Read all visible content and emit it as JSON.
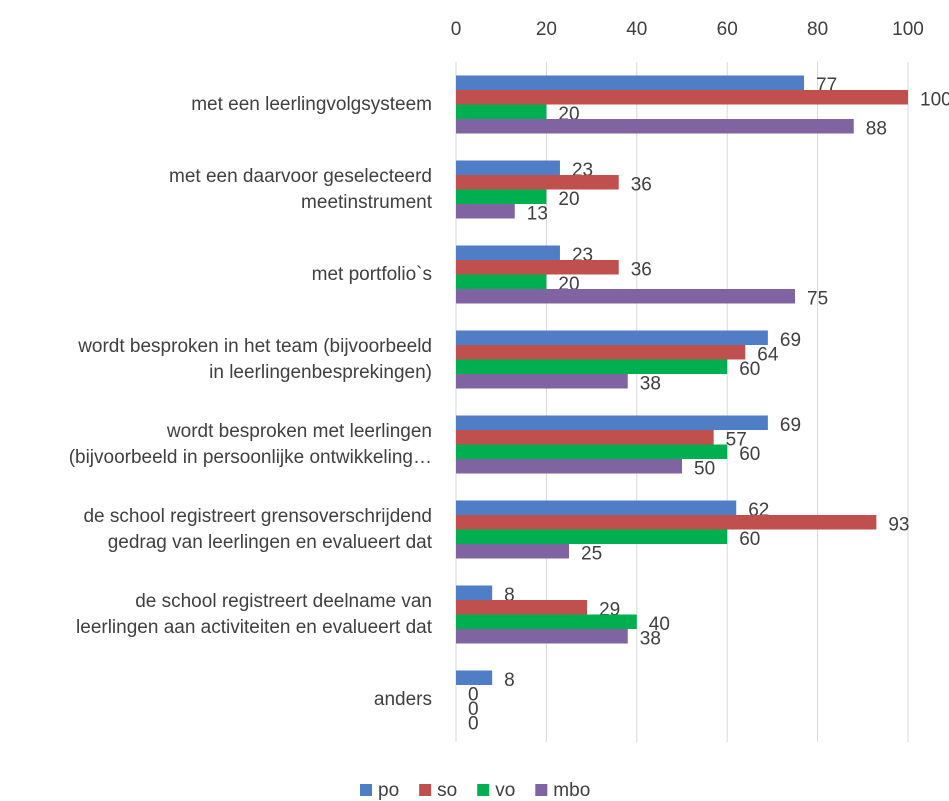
{
  "chart_data": {
    "type": "hbar",
    "categories": [
      "met een leerlingvolgsysteem",
      "met een daarvoor geselecteerd\nmeetinstrument",
      "met portfolio`s",
      "wordt besproken in het team (bijvoorbeeld\nin leerlingenbesprekingen)",
      "wordt besproken met leerlingen\n(bijvoorbeeld in persoonlijke ontwikkeling…",
      "de school registreert grensoverschrijdend\ngedrag van leerlingen en evalueert dat",
      "de school registreert deelname van\nleerlingen aan activiteiten en evalueert dat",
      "anders"
    ],
    "series": [
      {
        "name": "po",
        "color": "#4f7ec6",
        "values": [
          77,
          23,
          23,
          69,
          69,
          62,
          8,
          8
        ]
      },
      {
        "name": "so",
        "color": "#c0504d",
        "values": [
          100,
          36,
          36,
          64,
          57,
          93,
          29,
          0
        ]
      },
      {
        "name": "vo",
        "color": "#00b050",
        "values": [
          20,
          20,
          20,
          60,
          60,
          60,
          40,
          0
        ]
      },
      {
        "name": "mbo",
        "color": "#8064a2",
        "values": [
          88,
          13,
          75,
          38,
          50,
          25,
          38,
          0
        ]
      }
    ],
    "xlim": [
      0,
      100
    ],
    "xticks": [
      0,
      20,
      40,
      60,
      80,
      100
    ],
    "grid": true,
    "legend": "bottom"
  }
}
